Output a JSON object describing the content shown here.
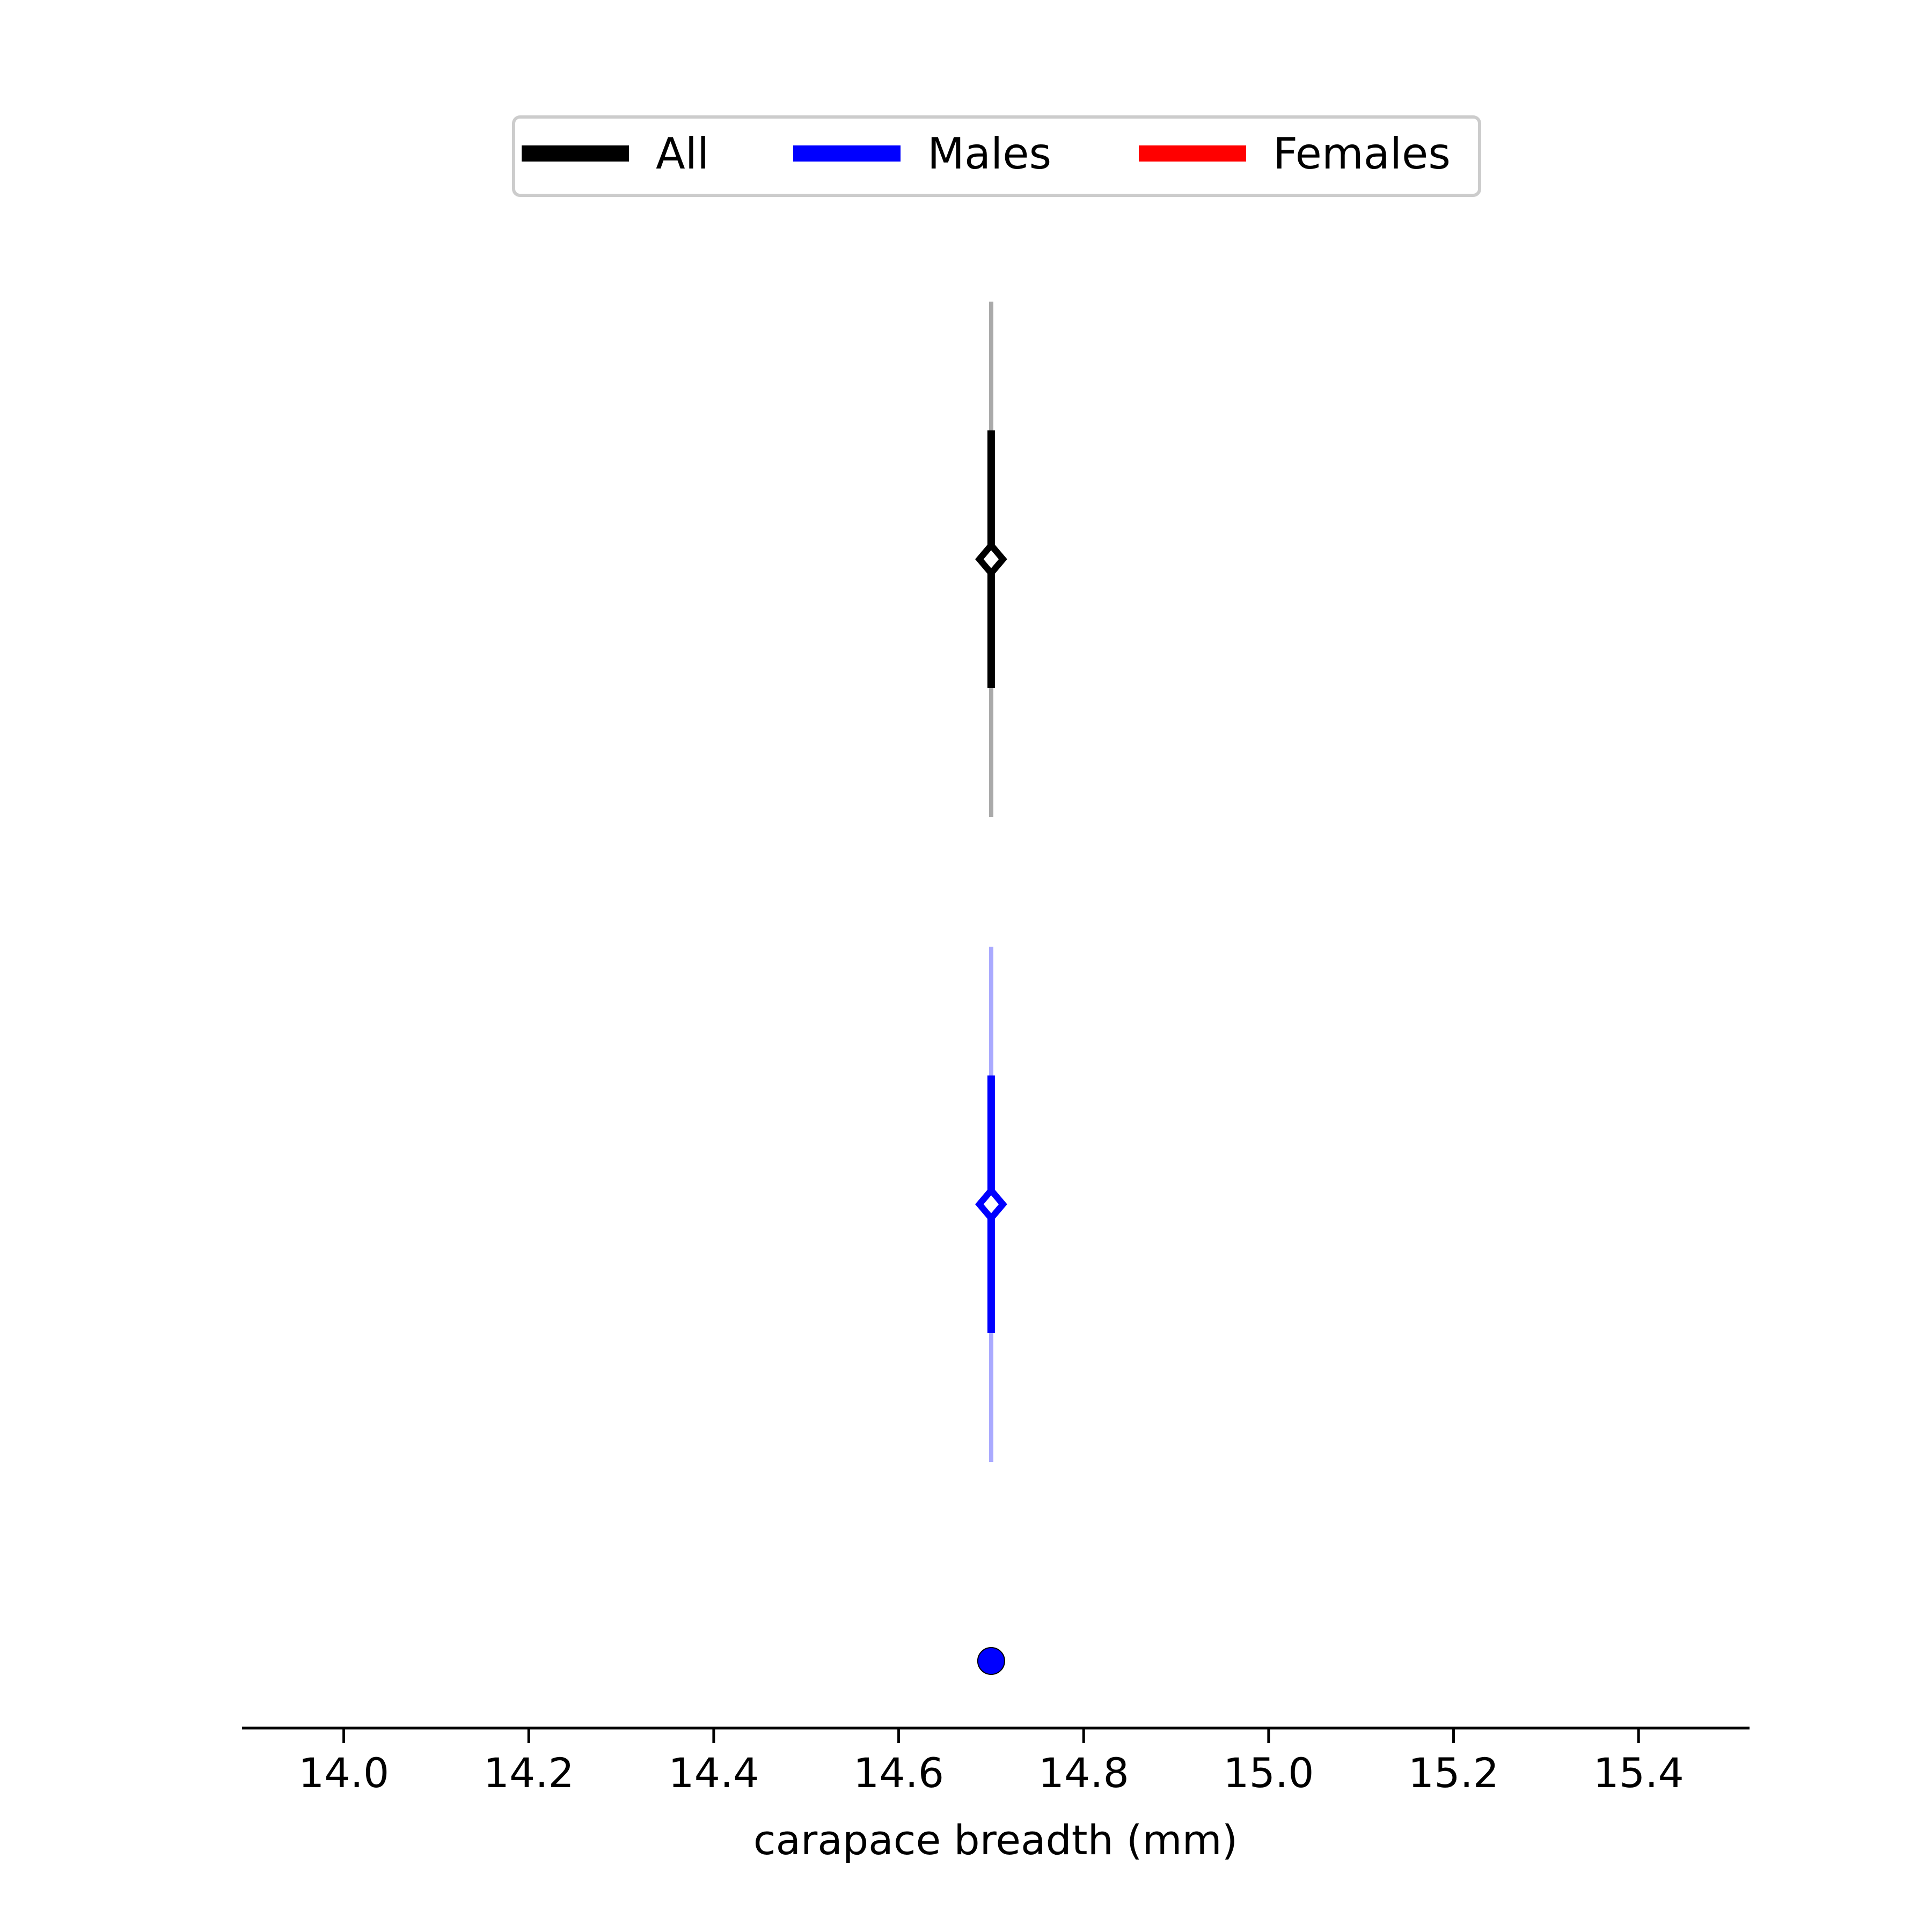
{
  "chart_data": {
    "type": "scatter",
    "title": "",
    "xlabel": "carapace breadth (mm)",
    "ylabel": "",
    "xlim": [
      13.89,
      15.52
    ],
    "xticks": [
      14.0,
      14.2,
      14.4,
      14.6,
      14.8,
      15.0,
      15.2,
      15.4
    ],
    "xtick_labels": [
      "14.0",
      "14.2",
      "14.4",
      "14.6",
      "14.8",
      "15.0",
      "15.2",
      "15.4"
    ],
    "grid": false,
    "legend": {
      "placement": "top-center",
      "entries": [
        {
          "label": "All",
          "color": "#000000"
        },
        {
          "label": "Males",
          "color": "#0000ff"
        },
        {
          "label": "Females",
          "color": "#ff0000"
        }
      ]
    },
    "series": [
      {
        "name": "All",
        "color": "#000000",
        "whisker_color": "#aaaaaa",
        "summary": {
          "median": 14.7,
          "q1": 14.7,
          "q3": 14.7,
          "min": 14.7,
          "max": 14.7
        }
      },
      {
        "name": "Males",
        "color": "#0000ff",
        "whisker_color": "#aaaaff",
        "summary": {
          "median": 14.7,
          "q1": 14.7,
          "q3": 14.7,
          "min": 14.7,
          "max": 14.7
        },
        "points": [
          14.7
        ]
      }
    ]
  }
}
